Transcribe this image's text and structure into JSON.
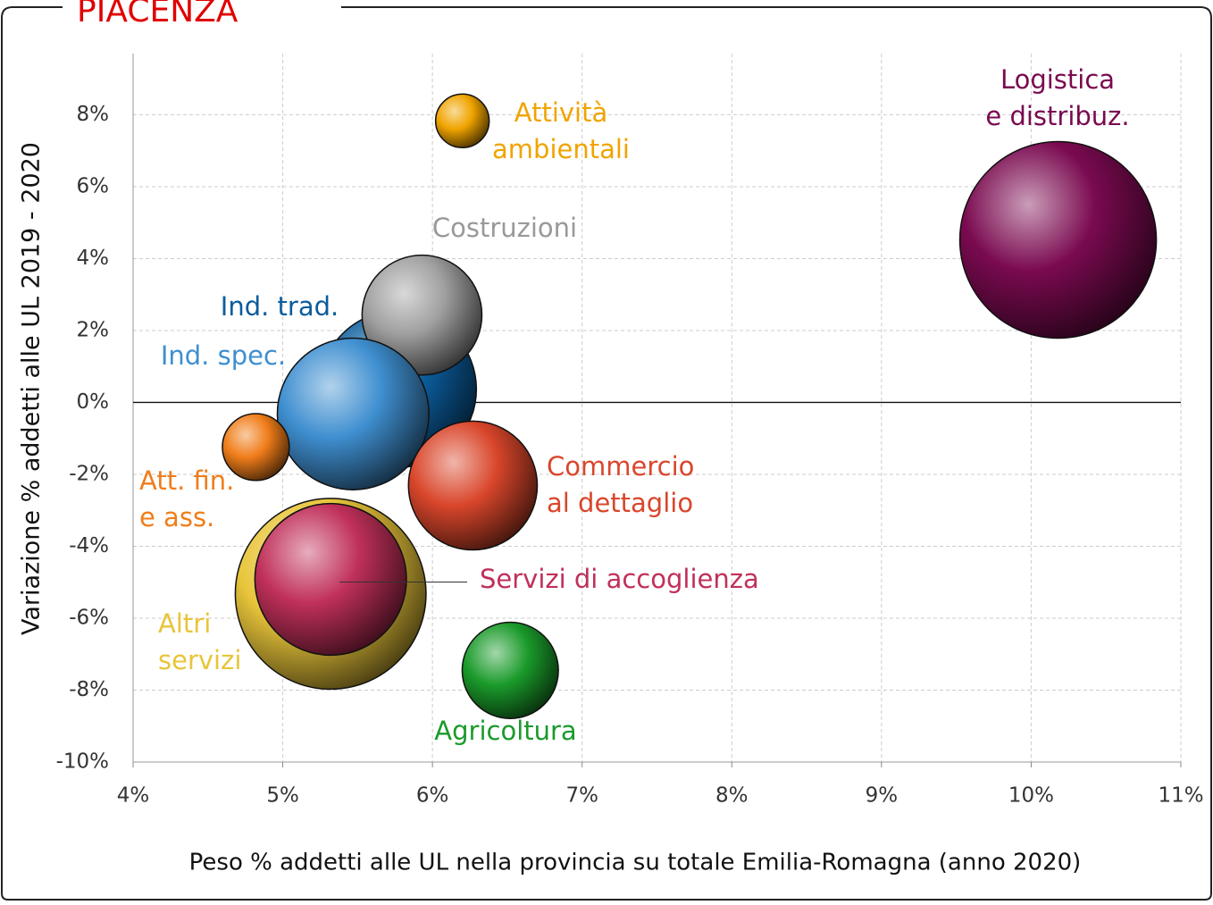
{
  "chart_data": {
    "type": "bubble",
    "title": "PIACENZA",
    "x_label": "Peso % addetti alle UL nella provincia su totale Emilia-Romagna (anno 2020)",
    "y_label": "Variazione % addetti alle UL 2019 - 2020",
    "xlim": [
      4,
      11
    ],
    "xticks": [
      {
        "value": 4,
        "label": "4%"
      },
      {
        "value": 5,
        "label": "5%"
      },
      {
        "value": 6,
        "label": "6%"
      },
      {
        "value": 7,
        "label": "7%"
      },
      {
        "value": 8,
        "label": "8%"
      },
      {
        "value": 9,
        "label": "9%"
      },
      {
        "value": 10,
        "label": "10%"
      },
      {
        "value": 11,
        "label": "11%"
      }
    ],
    "ylim": [
      -10,
      9.7
    ],
    "yticks": [
      {
        "value": -10,
        "label": "-10%"
      },
      {
        "value": -8,
        "label": "-8%"
      },
      {
        "value": -6,
        "label": "-6%"
      },
      {
        "value": -4,
        "label": "-4%"
      },
      {
        "value": -2,
        "label": "-2%"
      },
      {
        "value": 0,
        "label": "0%"
      },
      {
        "value": 2,
        "label": "2%"
      },
      {
        "value": 4,
        "label": "4%"
      },
      {
        "value": 6,
        "label": "6%"
      },
      {
        "value": 8,
        "label": "8%"
      }
    ],
    "grid": true,
    "series": [
      {
        "label": [
          "Attività",
          "ambientali"
        ],
        "color": "#f0a400",
        "x": 6.2,
        "y": 7.83,
        "size": 9
      },
      {
        "label": [
          "Logistica",
          "e distribuz."
        ],
        "color": "#7a0a50",
        "x": 10.18,
        "y": 4.52,
        "size": 121
      },
      {
        "label": [
          "Ind. trad."
        ],
        "color": "#0b5c9c",
        "x": 5.77,
        "y": 0.37,
        "size": 77
      },
      {
        "label": [
          "Costruzioni"
        ],
        "color": "#a0a0a0",
        "x": 5.93,
        "y": 2.43,
        "size": 45
      },
      {
        "label": [
          "Ind. spec."
        ],
        "color": "#3f8fd0",
        "x": 5.47,
        "y": -0.32,
        "size": 72
      },
      {
        "label": [
          "Att. fin.",
          "e ass."
        ],
        "color": "#f07d1a",
        "x": 4.82,
        "y": -1.24,
        "size": 14
      },
      {
        "label": [
          "Commercio",
          "al dettaglio"
        ],
        "color": "#d9462b",
        "x": 6.27,
        "y": -2.31,
        "size": 52
      },
      {
        "label": [
          "Altri",
          "servizi"
        ],
        "color": "#e8c53a",
        "x": 5.32,
        "y": -5.32,
        "size": 114
      },
      {
        "label": [
          "Servizi di accoglienza"
        ],
        "color": "#c0305a",
        "x": 5.32,
        "y": -4.92,
        "size": 72
      },
      {
        "label": [
          "Agricoltura"
        ],
        "color": "#1a9a2a",
        "x": 6.52,
        "y": -7.45,
        "size": 29
      }
    ]
  }
}
